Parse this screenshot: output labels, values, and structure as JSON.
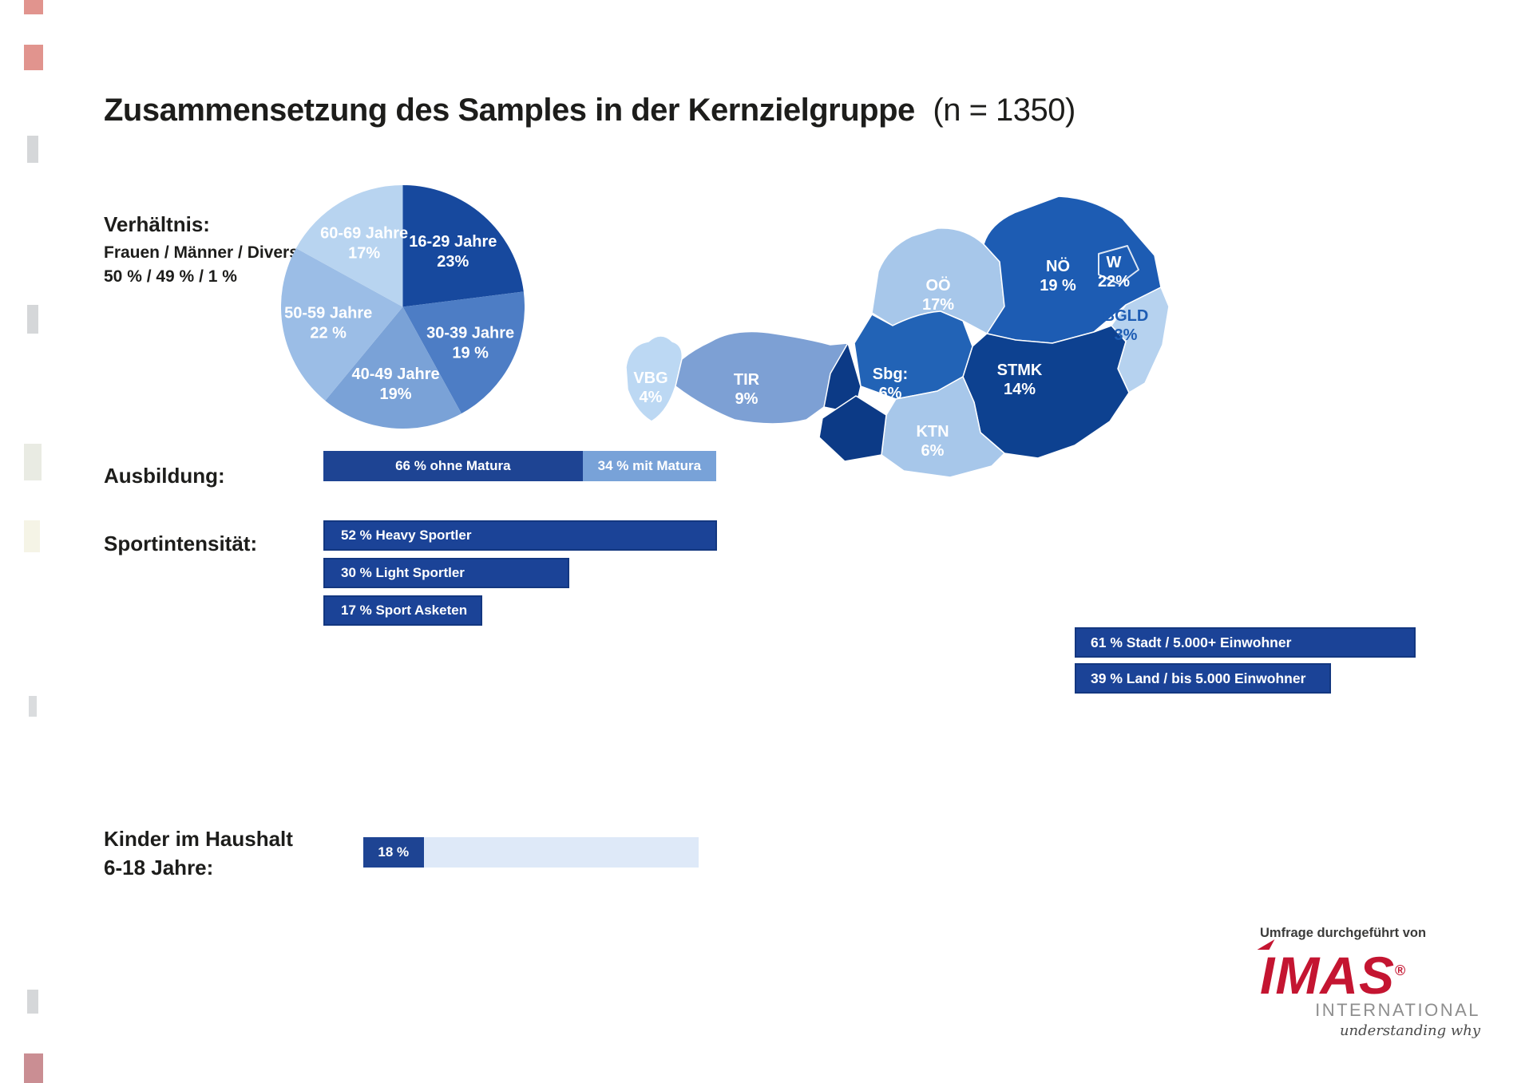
{
  "title": {
    "main": "Zusammensetzung des Samples in der Kernzielgruppe",
    "suffix": "(n = 1350)"
  },
  "colors": {
    "dark_navy": "#0D4190",
    "bar_blue": "#1B4397",
    "text_dark": "#1D1D1B"
  },
  "chart_data": [
    {
      "id": "gender_ratio",
      "type": "table",
      "title": "Verhältnis:",
      "display_line1": "Frauen / Männer / Divers",
      "display_line2": "50 % / 49 % / 1 %",
      "rows": [
        [
          "Frauen",
          "50 %"
        ],
        [
          "Männer",
          "49 %"
        ],
        [
          "Divers",
          "1 %"
        ]
      ]
    },
    {
      "id": "age_pie",
      "type": "pie",
      "unit": "%",
      "start_angle_deg": -90,
      "direction": "clockwise",
      "label_color": "#FFFFFF",
      "slices": [
        {
          "label": "16-29 Jahre",
          "value": 23,
          "value_text": "23%",
          "color": "#17499E"
        },
        {
          "label": "30-39 Jahre",
          "value": 19,
          "value_text": "19 %",
          "color": "#4D7DC5"
        },
        {
          "label": "40-49 Jahre",
          "value": 19,
          "value_text": "19%",
          "color": "#7AA2D7"
        },
        {
          "label": "50-59 Jahre",
          "value": 22,
          "value_text": "22 %",
          "color": "#9BBDE6"
        },
        {
          "label": "60-69 Jahre",
          "value": 17,
          "value_text": "17%",
          "color": "#B8D4F0"
        }
      ]
    },
    {
      "id": "ausbildung",
      "type": "bar",
      "stacked": true,
      "row_label": "Ausbildung:",
      "unit": "%",
      "segments": [
        {
          "label": "66 % ohne Matura",
          "value": 66,
          "color": "#1E4493",
          "text_color": "#FFFFFF"
        },
        {
          "label": "34 % mit Matura",
          "value": 34,
          "color": "#78A2D8",
          "text_color": "#FFFFFF"
        }
      ]
    },
    {
      "id": "sportintensitaet",
      "type": "bar",
      "row_label": "Sportintensität:",
      "unit": "%",
      "color": "#1B4397",
      "bars": [
        {
          "label": "52 % Heavy Sportler",
          "value": 52
        },
        {
          "label": "30 % Light Sportler",
          "value": 30
        },
        {
          "label": "17 % Sport Asketen",
          "value": 17
        }
      ]
    },
    {
      "id": "kinder_im_haushalt",
      "type": "bar",
      "row_label_line1": "Kinder im Haushalt",
      "row_label_line2": "6-18 Jahre:",
      "unit": "%",
      "value": 18,
      "value_text": "18 %",
      "max": 100,
      "fill_color": "#1E4493",
      "track_color": "#DEE9F8"
    },
    {
      "id": "bundeslaender",
      "type": "choropleth",
      "region_set": "Austria Bundesländer",
      "unit": "%",
      "accent_color": "#0C3A86",
      "regions": [
        {
          "code": "VBG",
          "value": 4,
          "value_text": "4%",
          "color": "#BCD8F3",
          "label_color": "#FFFFFF"
        },
        {
          "code": "TIR",
          "value": 9,
          "value_text": "9%",
          "color": "#7DA0D4",
          "label_color": "#FFFFFF"
        },
        {
          "code": "Sbg:",
          "value": 6,
          "value_text": "6%",
          "color": "#2263B6",
          "label_color": "#FFFFFF"
        },
        {
          "code": "OÖ",
          "value": 17,
          "value_text": "17%",
          "color": "#A7C7EA",
          "label_color": "#FFFFFF"
        },
        {
          "code": "NÖ",
          "value": 19,
          "value_text": "19 %",
          "color": "#1D5CB3",
          "label_color": "#FFFFFF"
        },
        {
          "code": "W",
          "value": 22,
          "value_text": "22%",
          "color": "#1D5CB3",
          "label_color": "#FFFFFF"
        },
        {
          "code": "BGLD",
          "value": 3,
          "value_text": "3%",
          "color": "#B6D2EF",
          "label_color": "#1D5CB3"
        },
        {
          "code": "STMK",
          "value": 14,
          "value_text": "14%",
          "color": "#0D4190",
          "label_color": "#FFFFFF"
        },
        {
          "code": "KTN",
          "value": 6,
          "value_text": "6%",
          "color": "#A7C7EA",
          "label_color": "#FFFFFF"
        }
      ]
    },
    {
      "id": "stadt_land",
      "type": "bar",
      "unit": "%",
      "color": "#1B4397",
      "bars": [
        {
          "label": "61 % Stadt / 5.000+ Einwohner",
          "value": 61
        },
        {
          "label": "39 % Land / bis 5.000 Einwohner",
          "value": 39
        }
      ]
    }
  ],
  "attribution": {
    "caption": "Umfrage durchgeführt von",
    "brand": "IMAS",
    "brand_mark": "®",
    "brand_color": "#C41531",
    "subbrand": "INTERNATIONAL",
    "tagline": "understanding why"
  }
}
